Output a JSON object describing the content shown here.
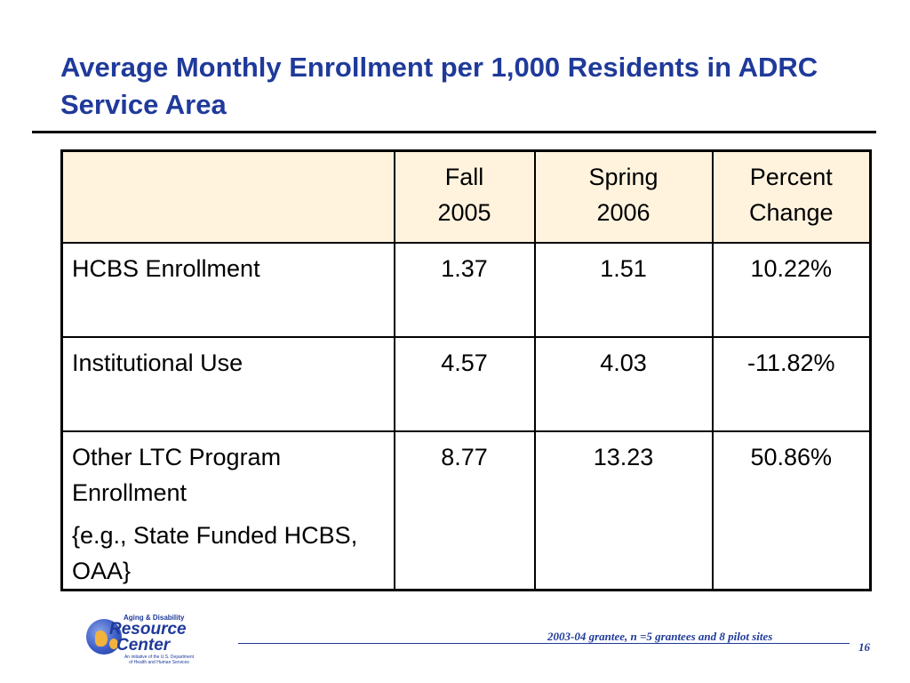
{
  "slide": {
    "title": "Average Monthly Enrollment per 1,000 Residents in ADRC Service Area",
    "page_number": "16",
    "footnote": "2003-04 grantee, n =5 grantees and 8 pilot sites"
  },
  "table": {
    "headers": [
      {
        "line1": "",
        "line2": ""
      },
      {
        "line1": "Fall",
        "line2": "2005"
      },
      {
        "line1": "Spring",
        "line2": "2006"
      },
      {
        "line1": "Percent",
        "line2": "Change"
      }
    ],
    "rows": [
      {
        "label": "HCBS Enrollment",
        "note": "",
        "fall_2005": "1.37",
        "spring_2006": "1.51",
        "percent_change": "10.22%"
      },
      {
        "label": "Institutional Use",
        "note": "",
        "fall_2005": "4.57",
        "spring_2006": "4.03",
        "percent_change": "-11.82%"
      },
      {
        "label": "Other LTC Program Enrollment",
        "note": "{e.g., State Funded HCBS, OAA}",
        "fall_2005": "8.77",
        "spring_2006": "13.23",
        "percent_change": "50.86%"
      }
    ]
  },
  "logo": {
    "small_text": "Aging & Disability",
    "line1": "Resource",
    "line2": "Center",
    "tagline": "An initiative of the U.S. Department of Health and Human Services"
  },
  "colors": {
    "title": "#1f3a9a",
    "header_fill": "#fff3de",
    "footer_text": "#1f3a9a"
  }
}
